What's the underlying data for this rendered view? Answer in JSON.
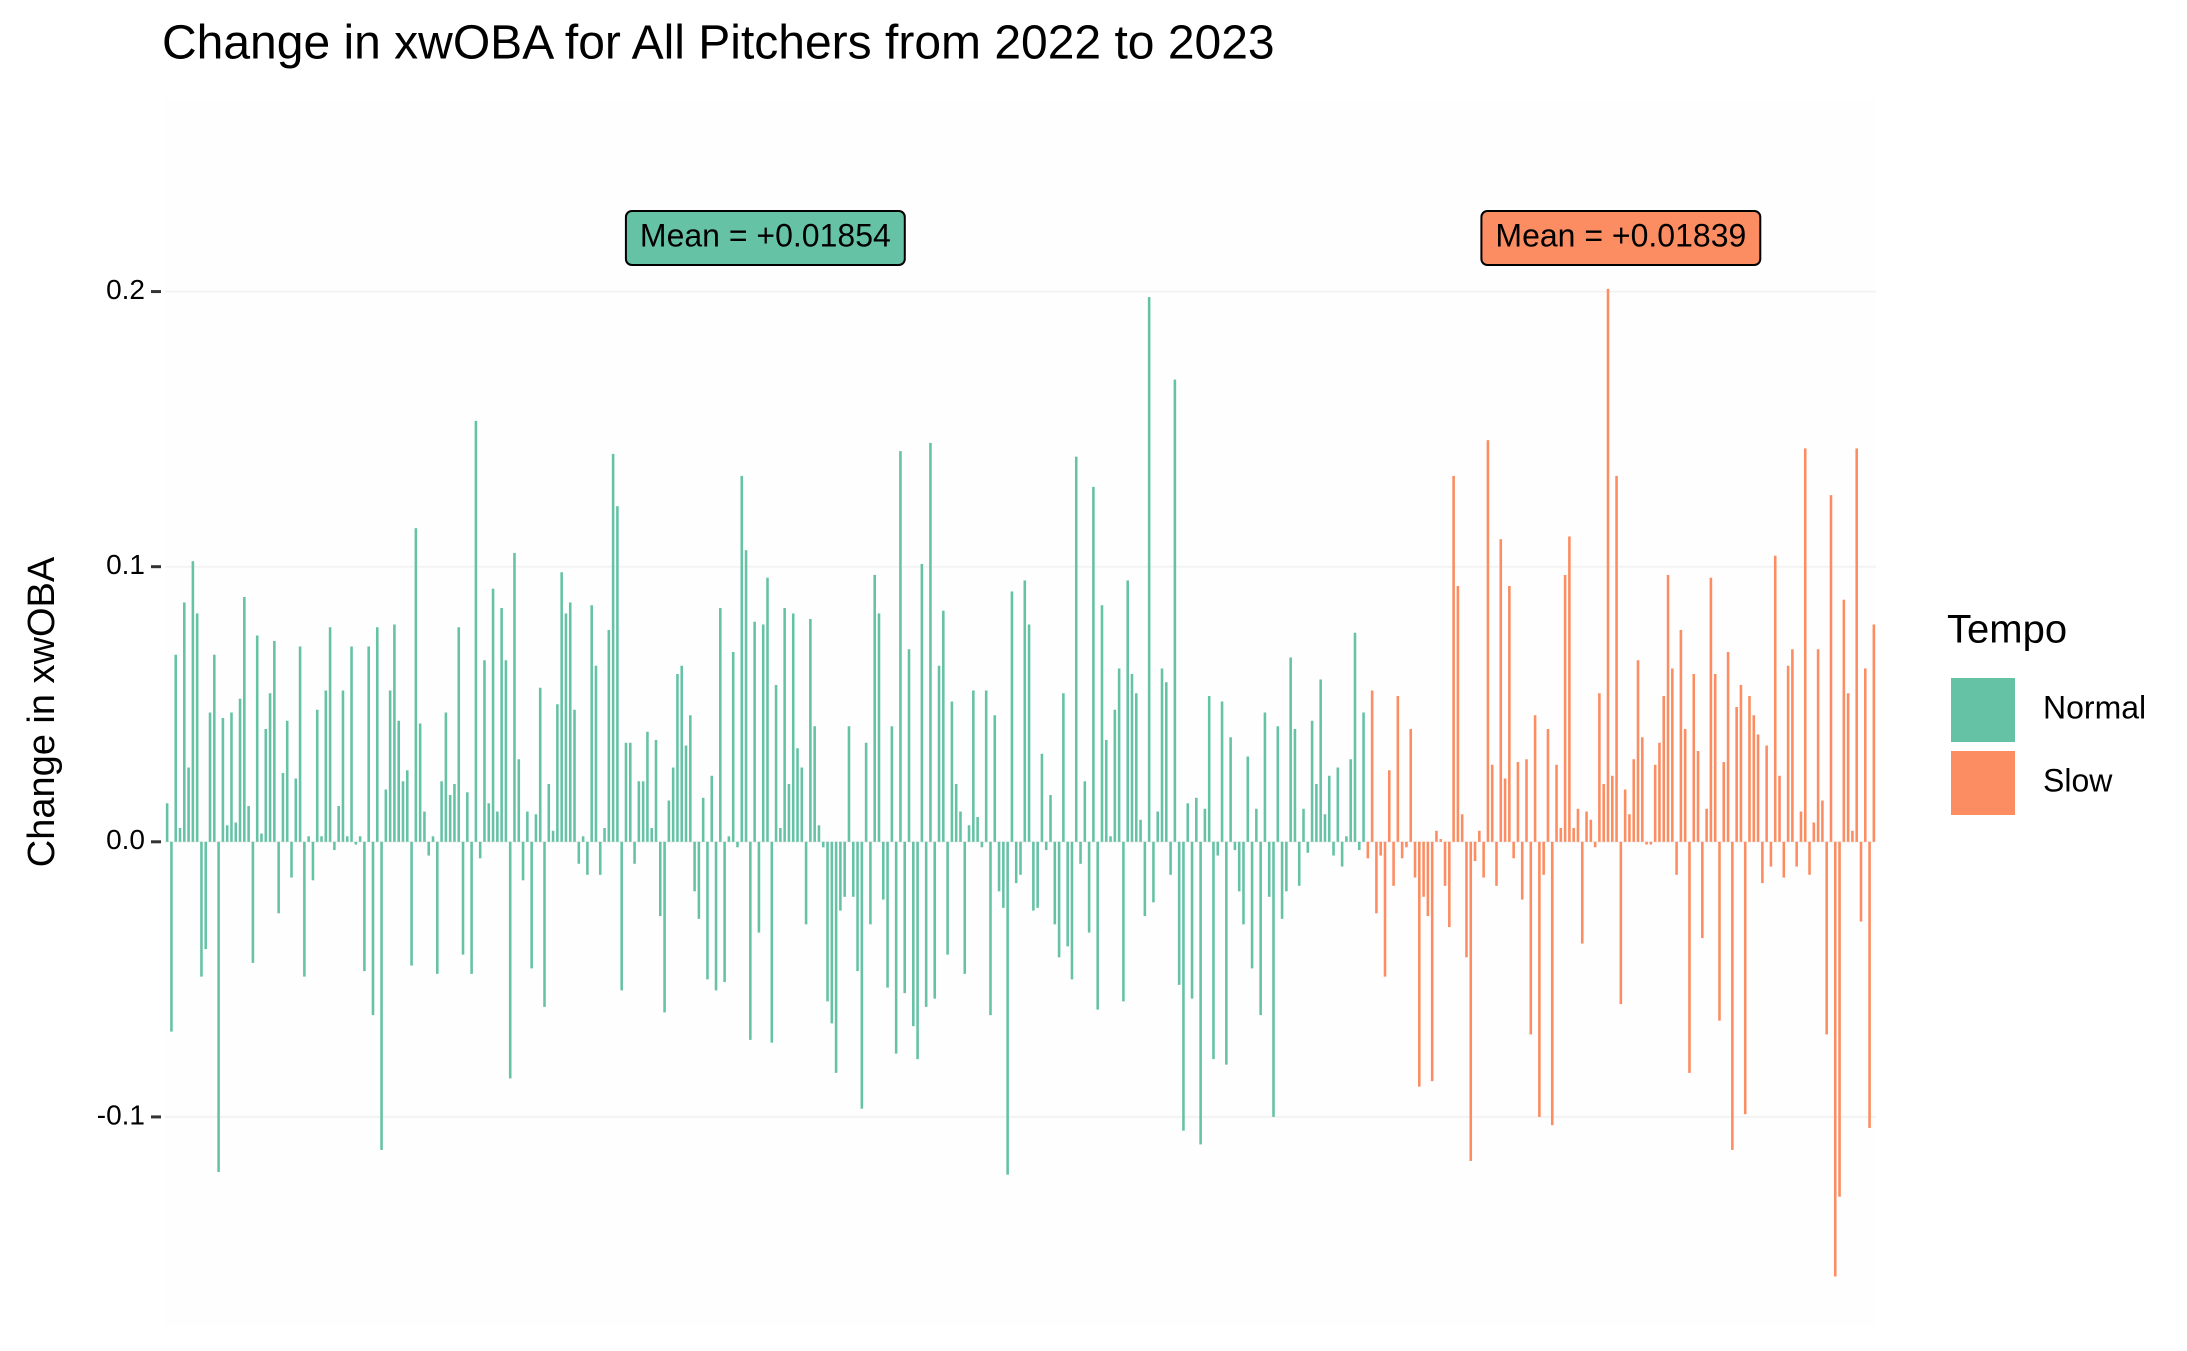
{
  "chart_data": {
    "type": "bar",
    "title": "Change in xwOBA for All Pitchers from 2022 to 2023",
    "y_label": "Change in xwOBA",
    "legend_title": "Tempo",
    "legend_position": "right",
    "grid": true,
    "ylim": [
      -0.176,
      0.27
    ],
    "yticks": [
      -0.1,
      {
        "value": 0,
        "label": "0.0"
      },
      0.1,
      0.2
    ],
    "annotations": [
      {
        "text": "Mean = +0.01854"
      },
      {
        "text": "Mean = +0.01839"
      }
    ],
    "series": [
      {
        "name": "Normal",
        "color": "#66c2a5",
        "values": [
          0.014,
          -0.069,
          0.068,
          0.005,
          0.087,
          0.027,
          0.102,
          0.083,
          -0.049,
          -0.039,
          0.047,
          0.068,
          -0.12,
          0.045,
          0.006,
          0.047,
          0.007,
          0.052,
          0.089,
          0.013,
          -0.044,
          0.075,
          0.003,
          0.041,
          0.054,
          0.073,
          -0.026,
          0.025,
          0.044,
          -0.013,
          0.023,
          0.071,
          -0.049,
          0.002,
          -0.014,
          0.048,
          0.002,
          0.055,
          0.078,
          -0.003,
          0.013,
          0.055,
          0.002,
          0.071,
          -0.001,
          0.002,
          -0.047,
          0.071,
          -0.063,
          0.078,
          -0.112,
          0.019,
          0.055,
          0.079,
          0.044,
          0.022,
          0.026,
          -0.045,
          0.114,
          0.043,
          0.011,
          -0.005,
          0.002,
          -0.048,
          0.022,
          0.047,
          0.017,
          0.021,
          0.078,
          -0.041,
          0.018,
          -0.048,
          0.153,
          -0.006,
          0.066,
          0.014,
          0.092,
          0.011,
          0.085,
          0.066,
          -0.086,
          0.105,
          0.03,
          -0.014,
          0.011,
          -0.046,
          0.01,
          0.056,
          -0.06,
          0.021,
          0.004,
          0.05,
          0.098,
          0.083,
          0.087,
          0.048,
          -0.008,
          0.002,
          -0.012,
          0.086,
          0.064,
          -0.012,
          0.005,
          0.077,
          0.141,
          0.122,
          -0.054,
          0.036,
          0.036,
          -0.008,
          0.022,
          0.022,
          0.04,
          0.005,
          0.037,
          -0.027,
          -0.062,
          0.015,
          0.027,
          0.061,
          0.064,
          0.035,
          0.046,
          -0.018,
          -0.028,
          0.016,
          -0.05,
          0.024,
          -0.054,
          0.085,
          -0.051,
          0.002,
          0.069,
          -0.002,
          0.133,
          0.106,
          -0.072,
          0.08,
          -0.033,
          0.079,
          0.096,
          -0.073,
          0.057,
          0.005,
          0.085,
          0.021,
          0.083,
          0.034,
          0.027,
          -0.03,
          0.081,
          0.042,
          0.006,
          -0.002,
          -0.058,
          -0.066,
          -0.084,
          -0.025,
          -0.02,
          0.042,
          -0.02,
          -0.047,
          -0.097,
          0.036,
          -0.03,
          0.097,
          0.083,
          -0.021,
          -0.053,
          0.042,
          -0.077,
          0.142,
          -0.055,
          0.07,
          -0.067,
          -0.079,
          0.101,
          -0.06,
          0.145,
          -0.057,
          0.064,
          0.084,
          -0.041,
          0.051,
          0.021,
          0.011,
          -0.048,
          0.006,
          0.055,
          0.009,
          -0.002,
          0.055,
          -0.063,
          0.046,
          -0.018,
          -0.024,
          -0.121,
          0.091,
          -0.015,
          -0.012,
          0.095,
          0.079,
          -0.025,
          -0.024,
          0.032,
          -0.003,
          0.017,
          -0.03,
          -0.042,
          0.054,
          -0.038,
          -0.05,
          0.14,
          -0.008,
          0.022,
          -0.033,
          0.129,
          -0.061,
          0.086,
          0.037,
          0.002,
          0.048,
          0.063,
          -0.058,
          0.095,
          0.061,
          0.054,
          0.008,
          -0.027,
          0.198,
          -0.022,
          0.011,
          0.063,
          0.058,
          -0.012,
          0.168,
          -0.052,
          -0.105,
          0.014,
          -0.057,
          0.016,
          -0.11,
          0.012,
          0.053,
          -0.079,
          -0.005,
          0.051,
          -0.081,
          0.038,
          -0.003,
          -0.018,
          -0.03,
          0.031,
          -0.046,
          0.012,
          -0.063,
          0.047,
          -0.02,
          -0.1,
          0.042,
          -0.028,
          -0.018,
          0.067,
          0.041,
          -0.016,
          0.012,
          -0.004,
          0.044,
          0.021,
          0.059,
          0.01,
          0.024,
          -0.005,
          0.027,
          -0.009,
          0.002,
          0.03,
          0.076,
          -0.003,
          0.047
        ]
      },
      {
        "name": "Slow",
        "color": "#fc8d62",
        "values": [
          -0.006,
          0.055,
          -0.026,
          -0.005,
          -0.049,
          0.026,
          -0.016,
          0.053,
          -0.006,
          -0.002,
          0.041,
          -0.013,
          -0.089,
          -0.02,
          -0.027,
          -0.087,
          0.004,
          0.001,
          -0.016,
          -0.031,
          0.133,
          0.093,
          0.01,
          -0.042,
          -0.116,
          -0.007,
          0.004,
          -0.013,
          0.146,
          0.028,
          -0.016,
          0.11,
          0.023,
          0.093,
          -0.006,
          0.029,
          -0.021,
          0.03,
          -0.07,
          0.046,
          -0.1,
          -0.012,
          0.041,
          -0.103,
          0.028,
          0.005,
          0.097,
          0.111,
          0.005,
          0.012,
          -0.037,
          0.011,
          0.008,
          -0.002,
          0.054,
          0.021,
          0.201,
          0.024,
          0.133,
          -0.059,
          0.019,
          0.01,
          0.03,
          0.066,
          0.038,
          -0.001,
          -0.001,
          0.028,
          0.036,
          0.053,
          0.097,
          0.063,
          -0.012,
          0.077,
          0.041,
          -0.084,
          0.061,
          0.033,
          -0.035,
          0.012,
          0.096,
          0.061,
          -0.065,
          0.029,
          0.069,
          -0.112,
          0.049,
          0.057,
          -0.099,
          0.053,
          0.046,
          0.039,
          -0.015,
          0.035,
          -0.009,
          0.104,
          0.024,
          -0.013,
          0.064,
          0.07,
          -0.009,
          0.011,
          0.143,
          -0.012,
          0.007,
          0.07,
          0.015,
          -0.07,
          0.126,
          -0.158,
          -0.129,
          0.088,
          0.054,
          0.004,
          0.143,
          -0.029,
          0.063,
          -0.104,
          0.079
        ]
      }
    ]
  }
}
